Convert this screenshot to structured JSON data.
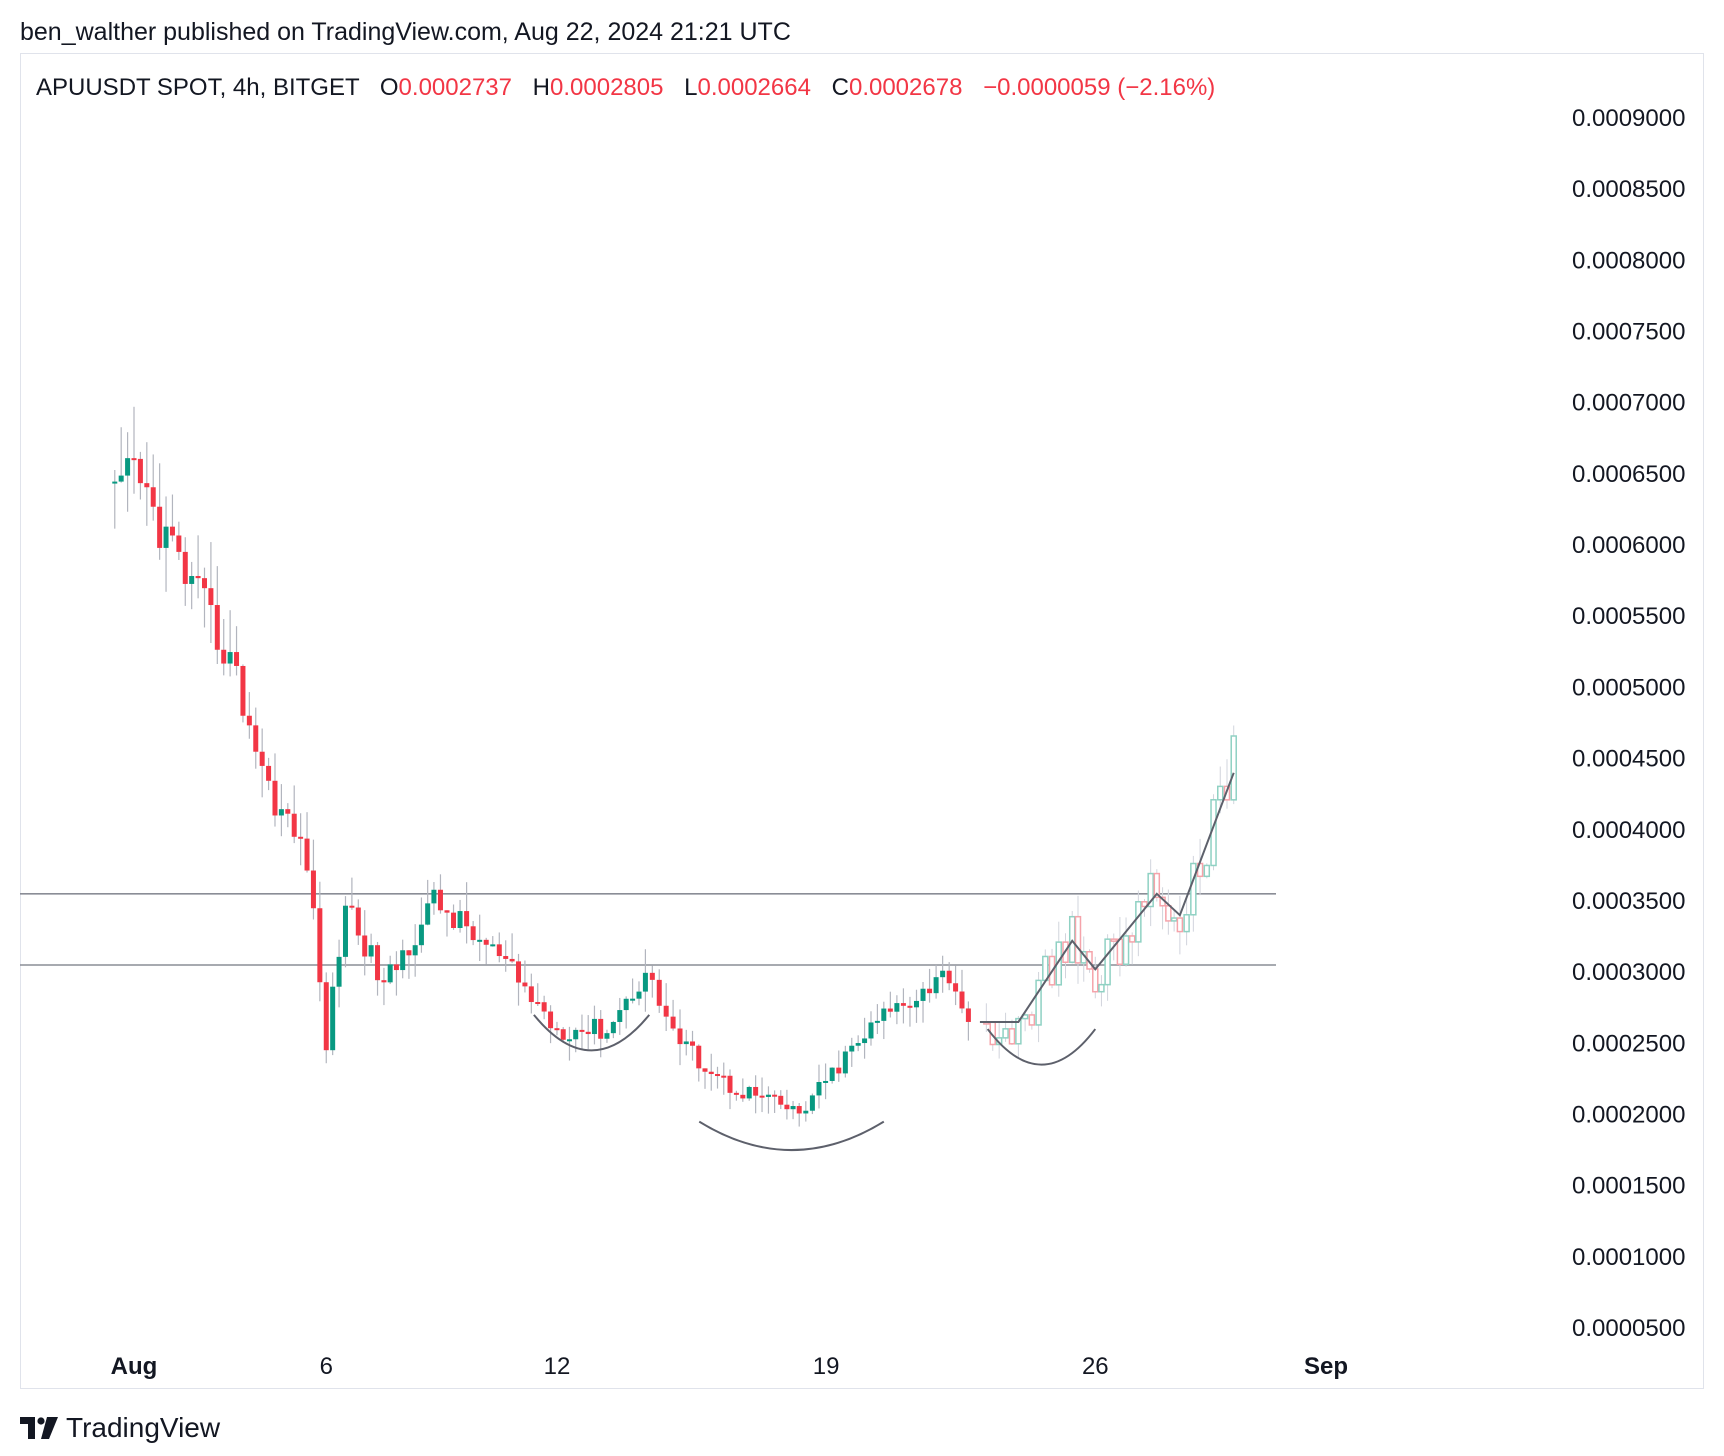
{
  "header": {
    "published": "ben_walther published on TradingView.com, Aug 22, 2024 21:21 UTC"
  },
  "legend": {
    "symbol": "APUUSDT SPOT, 4h, BITGET",
    "o_label": "O",
    "o_value": "0.0002737",
    "h_label": "H",
    "h_value": "0.0002805",
    "l_label": "L",
    "l_value": "0.0002664",
    "c_label": "C",
    "c_value": "0.0002678",
    "change": "−0.0000059 (−2.16%)"
  },
  "brand": {
    "name": "TradingView",
    "logo_icon": "tradingview-logo-icon"
  },
  "colors": {
    "up": "#089981",
    "down": "#f23645",
    "up_light": "#8fd1c3",
    "down_light": "#f5a3aa",
    "line": "#8a8d96",
    "grid": "#e0e3eb"
  },
  "chart_data": {
    "type": "candlestick",
    "symbol": "APUUSDT",
    "interval": "4h",
    "exchange": "BITGET",
    "y_ticks": [
      "0.0009000",
      "0.0008500",
      "0.0008000",
      "0.0007500",
      "0.0007000",
      "0.0006500",
      "0.0006000",
      "0.0005500",
      "0.0005000",
      "0.0004500",
      "0.0004000",
      "0.0003500",
      "0.0003000",
      "0.0002500",
      "0.0002000",
      "0.0001500",
      "0.0001000",
      "0.0000500"
    ],
    "ylim": [
      3e-05,
      0.00093
    ],
    "x_ticks": [
      {
        "label": "Aug",
        "day": 1,
        "bold": true
      },
      {
        "label": "6",
        "day": 6,
        "bold": false
      },
      {
        "label": "12",
        "day": 12,
        "bold": false
      },
      {
        "label": "19",
        "day": 19,
        "bold": false
      },
      {
        "label": "26",
        "day": 26,
        "bold": false
      },
      {
        "label": "Sep",
        "day": 32,
        "bold": true
      }
    ],
    "xlim_days": [
      0.5,
      33.6
    ],
    "horizontal_levels": [
      0.000355,
      0.000305
    ],
    "key_points": [
      {
        "day": 0.5,
        "price": 0.00063
      },
      {
        "day": 1.0,
        "price": 0.00065
      },
      {
        "day": 2.5,
        "price": 0.00057
      },
      {
        "day": 3.5,
        "price": 0.00052
      },
      {
        "day": 4.5,
        "price": 0.00043
      },
      {
        "day": 5.5,
        "price": 0.00038
      },
      {
        "day": 6.0,
        "price": 0.00025
      },
      {
        "day": 6.5,
        "price": 0.00035
      },
      {
        "day": 7.5,
        "price": 0.00029
      },
      {
        "day": 8.8,
        "price": 0.00035
      },
      {
        "day": 10.5,
        "price": 0.00031
      },
      {
        "day": 12.0,
        "price": 0.00026
      },
      {
        "day": 13.3,
        "price": 0.00026
      },
      {
        "day": 14.3,
        "price": 0.0003
      },
      {
        "day": 15.2,
        "price": 0.00025
      },
      {
        "day": 16.5,
        "price": 0.00022
      },
      {
        "day": 17.5,
        "price": 0.00021
      },
      {
        "day": 18.3,
        "price": 0.0002
      },
      {
        "day": 19.5,
        "price": 0.00024
      },
      {
        "day": 20.5,
        "price": 0.00027
      },
      {
        "day": 22.2,
        "price": 0.0003
      },
      {
        "day": 22.7,
        "price": 0.000265
      }
    ],
    "projection_path": [
      {
        "day": 23.0,
        "price": 0.000265
      },
      {
        "day": 24.0,
        "price": 0.000265
      },
      {
        "day": 25.4,
        "price": 0.000322
      },
      {
        "day": 26.0,
        "price": 0.000302
      },
      {
        "day": 27.6,
        "price": 0.000355
      },
      {
        "day": 28.2,
        "price": 0.00034
      },
      {
        "day": 29.6,
        "price": 0.00044
      }
    ],
    "arcs": [
      {
        "from_day": 11.4,
        "to_day": 14.4,
        "bottom_price": 0.000245,
        "edge_price": 0.00027
      },
      {
        "from_day": 15.7,
        "to_day": 20.5,
        "bottom_price": 0.000175,
        "edge_price": 0.000195
      },
      {
        "from_day": 23.2,
        "to_day": 26.0,
        "bottom_price": 0.000235,
        "edge_price": 0.00026
      }
    ]
  }
}
